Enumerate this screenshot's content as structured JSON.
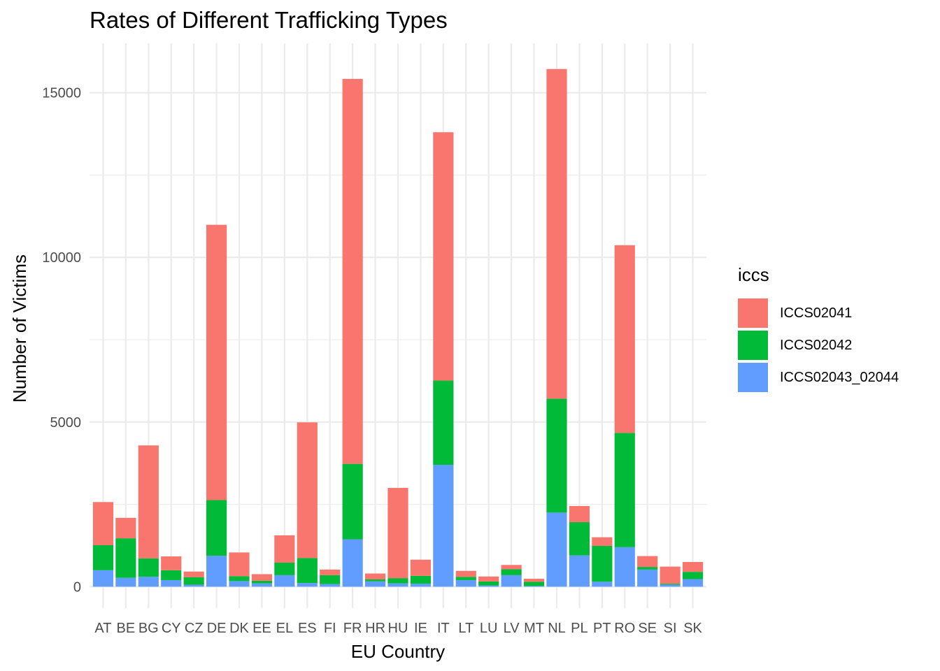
{
  "chart_data": {
    "type": "bar",
    "stacked": true,
    "title": "Rates of Different Trafficking Types",
    "xlabel": "EU Country",
    "ylabel": "Number of Victims",
    "ylim": [
      -650,
      16500
    ],
    "yticks": [
      0,
      5000,
      10000,
      15000
    ],
    "yticks_labels": [
      "0",
      "5000",
      "10000",
      "15000"
    ],
    "grid": true,
    "legend_title": "iccs",
    "legend_position": "right",
    "categories": [
      "AT",
      "BE",
      "BG",
      "CY",
      "CZ",
      "DE",
      "DK",
      "EE",
      "EL",
      "ES",
      "FI",
      "FR",
      "HR",
      "HU",
      "IE",
      "IT",
      "LT",
      "LU",
      "LV",
      "MT",
      "NL",
      "PL",
      "PT",
      "RO",
      "SE",
      "SI",
      "SK"
    ],
    "series": [
      {
        "name": "ICCS02043_02044",
        "color": "#619CFF",
        "values": [
          500,
          270,
          300,
          200,
          60,
          940,
          170,
          100,
          350,
          110,
          80,
          1440,
          160,
          100,
          90,
          3700,
          200,
          40,
          350,
          20,
          2250,
          950,
          150,
          1200,
          520,
          60,
          230
        ]
      },
      {
        "name": "ICCS02042",
        "color": "#00BA38",
        "values": [
          760,
          1200,
          560,
          300,
          230,
          1690,
          150,
          80,
          380,
          760,
          270,
          2290,
          60,
          160,
          240,
          2560,
          100,
          120,
          180,
          130,
          3460,
          1010,
          1090,
          3470,
          80,
          30,
          220
        ]
      },
      {
        "name": "ICCS02041",
        "color": "#F8766D",
        "values": [
          1310,
          620,
          3430,
          420,
          170,
          8360,
          720,
          200,
          830,
          4120,
          170,
          11690,
          180,
          2740,
          490,
          7540,
          180,
          150,
          130,
          90,
          10010,
          490,
          260,
          5700,
          330,
          520,
          300
        ]
      }
    ]
  }
}
